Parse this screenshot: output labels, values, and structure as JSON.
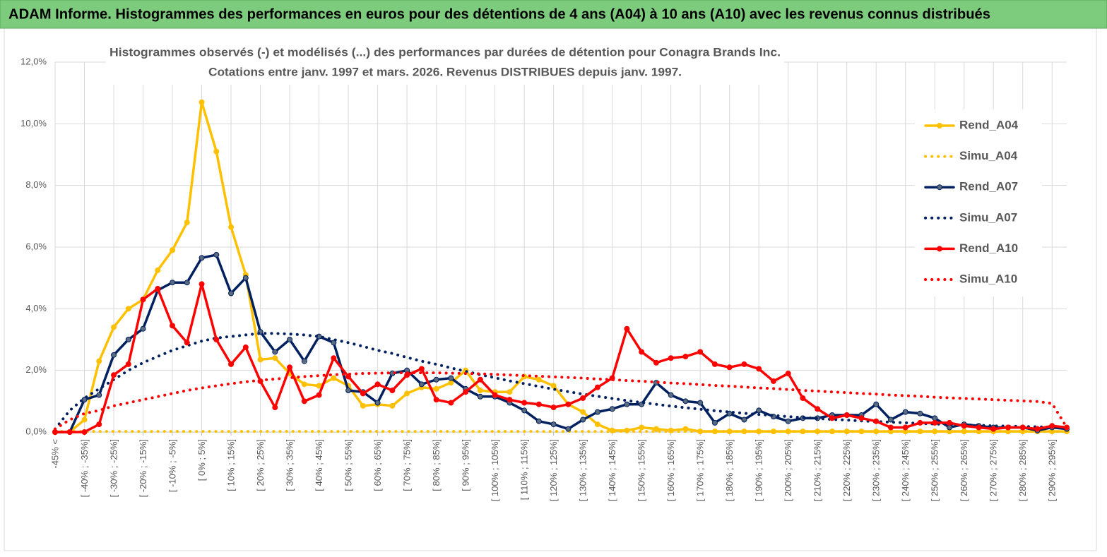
{
  "header": {
    "title": "ADAM Informe. Histogrammes des performances en euros pour des détentions de 4 ans (A04) à 10 ans (A10) avec les revenus connus distribués"
  },
  "chart_data": {
    "type": "line",
    "title": "Histogrammes observés (-)  et modélisés (...) des performances par durées de détention pour Conagra Brands Inc.",
    "subtitle": "Cotations entre janv. 1997 et mars.  2026. Revenus DISTRIBUES depuis janv. 1997.",
    "categories": [
      "-45% <",
      null,
      "[ -40% ; -35%]",
      null,
      "[ -30% ; -25%]",
      null,
      "[ -20% ; -15%]",
      null,
      "[ -10% ; -5%]",
      null,
      "[ 0% ; 5%]",
      null,
      "[ 10% ; 15%]",
      null,
      "[ 20% ; 25%]",
      null,
      "[ 30% ; 35%]",
      null,
      "[ 40% ; 45%]",
      null,
      "[ 50% ; 55%]",
      null,
      "[ 60% ; 65%]",
      null,
      "[ 70% ; 75%]",
      null,
      "[ 80% ; 85%]",
      null,
      "[ 90% ; 95%]",
      null,
      "[ 100% ; 105%]",
      null,
      "[ 110% ; 115%]",
      null,
      "[ 120% ; 125%]",
      null,
      "[ 130% ; 135%]",
      null,
      "[ 140% ; 145%]",
      null,
      "[ 150% ; 155%]",
      null,
      "[ 160% ; 165%]",
      null,
      "[ 170% ; 175%]",
      null,
      "[ 180% ; 185%]",
      null,
      "[ 190% ; 195%]",
      null,
      "[ 200% ; 205%]",
      null,
      "[ 210% ; 215%]",
      null,
      "[ 220% ; 225%]",
      null,
      "[ 230% ; 235%]",
      null,
      "[ 240% ; 245%]",
      null,
      "[ 250% ; 255%]",
      null,
      "[ 260% ; 265%]",
      null,
      "[ 270% ; 275%]",
      null,
      "[ 280% ; 285%]",
      null,
      "[ 290% ; 295%]",
      null
    ],
    "series": [
      {
        "name": "Rend_A04",
        "color": "#FFC000",
        "style": "solid",
        "markers": true,
        "values": [
          0,
          0,
          0.4,
          2.3,
          3.4,
          4.0,
          4.3,
          5.25,
          5.9,
          6.8,
          10.7,
          9.1,
          6.65,
          5.1,
          2.35,
          2.4,
          1.9,
          1.55,
          1.5,
          1.75,
          1.5,
          0.85,
          0.9,
          0.85,
          1.25,
          1.45,
          1.4,
          1.6,
          2.0,
          1.35,
          1.3,
          1.3,
          1.8,
          1.7,
          1.5,
          0.9,
          0.65,
          0.25,
          0.05,
          0.05,
          0.15,
          0.1,
          0.05,
          0.1,
          0.02,
          0.02,
          0.02,
          0.02,
          0.02,
          0.02,
          0.02,
          0.02,
          0.02,
          0.02,
          0.02,
          0.02,
          0.02,
          0.02,
          0.02,
          0.02,
          0.02,
          0.02,
          0.02,
          0.02,
          0.02,
          0.02,
          0.02,
          0.02,
          0.02,
          0.02
        ]
      },
      {
        "name": "Simu_A04",
        "color": "#FFC000",
        "style": "dotted",
        "markers": false,
        "values": [
          0.02,
          0.02,
          0.02,
          0.02,
          0.02,
          0.02,
          0.02,
          0.02,
          0.02,
          0.02,
          0.02,
          0.02,
          0.02,
          0.02,
          0.02,
          0.02,
          0.02,
          0.02,
          0.02,
          0.02,
          0.02,
          0.02,
          0.02,
          0.02,
          0.02,
          0.02,
          0.02,
          0.02,
          0.02,
          0.02,
          0.02,
          0.02,
          0.02,
          0.02,
          0.02,
          0.02,
          0.02,
          0.02,
          0.02,
          0.02,
          0.02,
          0.02,
          0.02,
          0.02,
          0.02,
          0.02,
          0.02,
          0.02,
          0.02,
          0.02,
          0.02,
          0.02,
          0.02,
          0.02,
          0.02,
          0.02,
          0.02,
          0.02,
          0.02,
          0.02,
          0.02,
          0.02,
          0.02,
          0.02,
          0.02,
          0.02,
          0.02,
          0.02,
          0.02,
          0.02
        ]
      },
      {
        "name": "Rend_A07",
        "color": "#002060",
        "style": "solid",
        "markers": true,
        "values": [
          0,
          0,
          1.05,
          1.2,
          2.5,
          3.0,
          3.35,
          4.6,
          4.85,
          4.85,
          5.65,
          5.75,
          4.5,
          5.0,
          3.25,
          2.6,
          3.0,
          2.3,
          3.1,
          2.9,
          1.35,
          1.3,
          0.95,
          1.9,
          2.0,
          1.55,
          1.7,
          1.75,
          1.4,
          1.15,
          1.15,
          0.95,
          0.7,
          0.35,
          0.25,
          0.1,
          0.4,
          0.65,
          0.75,
          0.9,
          0.9,
          1.6,
          1.2,
          1.0,
          0.95,
          0.3,
          0.6,
          0.4,
          0.7,
          0.5,
          0.35,
          0.45,
          0.45,
          0.55,
          0.55,
          0.55,
          0.9,
          0.4,
          0.65,
          0.6,
          0.45,
          0.15,
          0.25,
          0.2,
          0.15,
          0.15,
          0.15,
          0.05,
          0.15,
          0.1
        ]
      },
      {
        "name": "Simu_A07",
        "color": "#002060",
        "style": "dotted",
        "markers": false,
        "values": [
          0.1,
          0.7,
          1.1,
          1.4,
          1.7,
          2.0,
          2.25,
          2.45,
          2.65,
          2.8,
          2.95,
          3.05,
          3.1,
          3.15,
          3.2,
          3.2,
          3.18,
          3.15,
          3.1,
          3.0,
          2.9,
          2.78,
          2.65,
          2.55,
          2.42,
          2.3,
          2.2,
          2.08,
          1.97,
          1.86,
          1.76,
          1.66,
          1.57,
          1.48,
          1.39,
          1.31,
          1.23,
          1.16,
          1.09,
          1.02,
          0.96,
          0.9,
          0.84,
          0.79,
          0.74,
          0.69,
          0.65,
          0.61,
          0.57,
          0.54,
          0.5,
          0.47,
          0.44,
          0.41,
          0.39,
          0.36,
          0.34,
          0.32,
          0.3,
          0.28,
          0.26,
          0.25,
          0.23,
          0.22,
          0.2,
          0.19,
          0.18,
          0.17,
          0.16,
          0.1
        ]
      },
      {
        "name": "Rend_A10",
        "color": "#FF0000",
        "style": "solid",
        "markers": true,
        "values": [
          0,
          0,
          0,
          0.25,
          1.85,
          2.2,
          4.3,
          4.65,
          3.45,
          2.9,
          4.8,
          3.0,
          2.2,
          2.75,
          1.65,
          0.8,
          2.1,
          1.0,
          1.2,
          2.4,
          1.8,
          1.25,
          1.55,
          1.35,
          1.85,
          2.05,
          1.05,
          0.95,
          1.3,
          1.7,
          1.2,
          1.05,
          0.95,
          0.9,
          0.8,
          0.9,
          1.1,
          1.45,
          1.75,
          3.35,
          2.6,
          2.25,
          2.4,
          2.45,
          2.6,
          2.2,
          2.1,
          2.2,
          2.05,
          1.65,
          1.9,
          1.1,
          0.75,
          0.45,
          0.55,
          0.45,
          0.35,
          0.15,
          0.15,
          0.3,
          0.3,
          0.3,
          0.2,
          0.15,
          0.1,
          0.15,
          0.15,
          0.1,
          0.2,
          0.15
        ]
      },
      {
        "name": "Simu_A10",
        "color": "#FF0000",
        "style": "dotted",
        "markers": false,
        "values": [
          0.1,
          0.4,
          0.6,
          0.7,
          0.85,
          0.95,
          1.05,
          1.15,
          1.25,
          1.35,
          1.43,
          1.5,
          1.57,
          1.63,
          1.68,
          1.72,
          1.76,
          1.8,
          1.83,
          1.86,
          1.88,
          1.9,
          1.91,
          1.92,
          1.92,
          1.92,
          1.92,
          1.91,
          1.9,
          1.89,
          1.87,
          1.85,
          1.83,
          1.81,
          1.79,
          1.77,
          1.75,
          1.72,
          1.7,
          1.67,
          1.65,
          1.62,
          1.59,
          1.57,
          1.54,
          1.51,
          1.49,
          1.46,
          1.43,
          1.41,
          1.38,
          1.35,
          1.33,
          1.3,
          1.28,
          1.25,
          1.23,
          1.2,
          1.18,
          1.16,
          1.13,
          1.11,
          1.09,
          1.07,
          1.05,
          1.03,
          1.01,
          0.99,
          0.93,
          0.15
        ]
      }
    ],
    "ylim": [
      0,
      12
    ],
    "yticks": [
      {
        "value": 0,
        "label": "0,0%"
      },
      {
        "value": 2,
        "label": "2,0%"
      },
      {
        "value": 4,
        "label": "4,0%"
      },
      {
        "value": 6,
        "label": "6,0%"
      },
      {
        "value": 8,
        "label": "8,0%"
      },
      {
        "value": 10,
        "label": "10,0%"
      },
      {
        "value": 12,
        "label": "12,0%"
      }
    ],
    "grid": true,
    "legend": "right"
  }
}
